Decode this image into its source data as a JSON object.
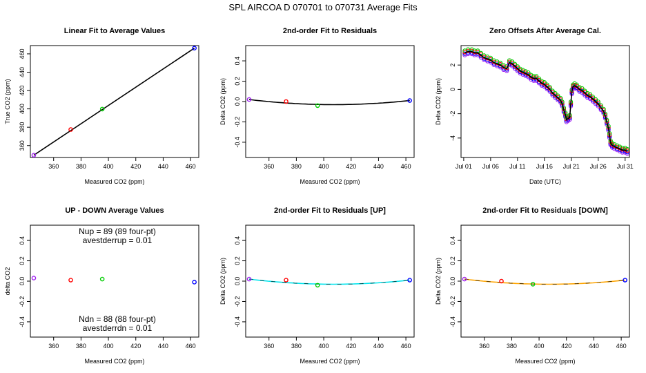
{
  "page_title": "SPL    AIRCOA D    070701 to 070731    Average Fits",
  "colors": {
    "c1": "#a020f0",
    "c2": "#ff0000",
    "c3": "#00cc00",
    "c4": "#0000ff",
    "line": "#000000",
    "up_fit": "#00e5ee",
    "down_fit": "#ffa500"
  },
  "chart_data": [
    {
      "type": "scatter",
      "title": "Linear Fit to Average Values",
      "xlabel": "Measured CO2 (ppm)",
      "ylabel": "True CO2 (ppm)",
      "xlim": [
        343,
        466
      ],
      "ylim": [
        347,
        469
      ],
      "xticks": [
        360,
        380,
        400,
        420,
        440,
        460
      ],
      "yticks": [
        360,
        380,
        400,
        420,
        440,
        460
      ],
      "x": [
        345.5,
        372.5,
        395.5,
        462.8
      ],
      "y": [
        349.5,
        377.5,
        399.8,
        466.2
      ],
      "colors": [
        "c1",
        "c2",
        "c3",
        "c4"
      ],
      "fit": {
        "kind": "linear",
        "x0": 345.5,
        "y0": 349.5,
        "x1": 462.8,
        "y1": 466.2
      }
    },
    {
      "type": "scatter",
      "title": "2nd-order Fit to Residuals",
      "xlabel": "Measured CO2 (ppm)",
      "ylabel": "Delta CO2 (ppm)",
      "xlim": [
        343,
        466
      ],
      "ylim": [
        -0.55,
        0.55
      ],
      "xticks": [
        360,
        380,
        400,
        420,
        440,
        460
      ],
      "yticks": [
        -0.4,
        -0.2,
        0.0,
        0.2,
        0.4
      ],
      "x": [
        345.5,
        372.5,
        395.5,
        462.8
      ],
      "y": [
        0.02,
        0.0,
        -0.04,
        0.01
      ],
      "colors": [
        "c1",
        "c2",
        "c3",
        "c4"
      ],
      "fit": {
        "kind": "quad",
        "x0": 345.5,
        "y0": 0.02,
        "x1": 462.8,
        "y1": 0.01,
        "xm": 412,
        "ym": -0.03,
        "color": "line"
      }
    },
    {
      "type": "line",
      "title": "Zero Offsets After Average Cal.",
      "xlabel": "Date (UTC)",
      "ylabel": "Delta CO2 (ppm)",
      "xlim": [
        0.5,
        31.8
      ],
      "ylim": [
        -5.6,
        3.6
      ],
      "xticks": [
        1,
        6,
        11,
        16,
        21,
        26,
        31
      ],
      "xticklabels": [
        "Jul 01",
        "Jul 06",
        "Jul 11",
        "Jul 16",
        "Jul 21",
        "Jul 26",
        "Jul 31"
      ],
      "yticks": [
        -4,
        -2,
        0,
        2
      ],
      "series": [
        {
          "name": "offset",
          "x": [
            1.2,
            1.8,
            2.5,
            3,
            3.6,
            4.2,
            4.8,
            5.4,
            6,
            6.6,
            7.2,
            7.8,
            8.4,
            9,
            9.5,
            10,
            10.5,
            11,
            11.5,
            12,
            12.5,
            13,
            13.5,
            14,
            14.5,
            15,
            15.5,
            16,
            16.5,
            17,
            17.5,
            18,
            18.5,
            19,
            19.3,
            19.6,
            19.9,
            20.1,
            20.4,
            20.7,
            20.9,
            21.1,
            21.3,
            21.6,
            22,
            22.5,
            23,
            23.5,
            24,
            24.5,
            25,
            25.5,
            26,
            26.5,
            27,
            27.3,
            27.6,
            27.9,
            28.1,
            28.3,
            28.6,
            29,
            29.5,
            30,
            30.5,
            31,
            31.4
          ],
          "y": [
            3.0,
            3.1,
            3.1,
            3.0,
            3.0,
            2.8,
            2.6,
            2.5,
            2.4,
            2.2,
            2.1,
            2.0,
            1.8,
            1.7,
            2.2,
            2.1,
            1.9,
            1.7,
            1.5,
            1.4,
            1.3,
            1.2,
            1.0,
            0.9,
            0.9,
            0.7,
            0.5,
            0.4,
            0.2,
            0.0,
            -0.3,
            -0.5,
            -0.7,
            -0.9,
            -1.2,
            -1.7,
            -2.1,
            -2.5,
            -2.4,
            -2.3,
            -1.2,
            -0.2,
            0.2,
            0.3,
            0.2,
            0.0,
            -0.1,
            -0.3,
            -0.5,
            -0.6,
            -0.8,
            -1.0,
            -1.2,
            -1.5,
            -1.8,
            -2.2,
            -2.7,
            -3.2,
            -3.8,
            -4.4,
            -4.6,
            -4.7,
            -4.8,
            -4.9,
            -5.0,
            -5.0,
            -5.1
          ]
        }
      ]
    },
    {
      "type": "scatter",
      "title": "UP - DOWN Average Values",
      "xlabel": "Measured CO2 (ppm)",
      "ylabel": "delta CO2",
      "xlim": [
        343,
        466
      ],
      "ylim": [
        -0.55,
        0.55
      ],
      "xticks": [
        360,
        380,
        400,
        420,
        440,
        460
      ],
      "yticks": [
        -0.4,
        -0.2,
        0.0,
        0.2,
        0.4
      ],
      "x": [
        345.5,
        372.5,
        395.5,
        462.8
      ],
      "y": [
        0.03,
        0.01,
        0.02,
        -0.01
      ],
      "colors": [
        "c1",
        "c2",
        "c3",
        "c4"
      ],
      "annotations": {
        "nup": "Nup = 89 (89 four-pt)",
        "avestderrup": "avestderrup =  0.01",
        "ndn": "Ndn = 88 (88 four-pt)",
        "avestderrdn": "avestderrdn =  0.01"
      }
    },
    {
      "type": "scatter",
      "title": "2nd-order Fit to Residuals [UP]",
      "xlabel": "Measured CO2 (ppm)",
      "ylabel": "Delta CO2 (ppm)",
      "xlim": [
        343,
        466
      ],
      "ylim": [
        -0.55,
        0.55
      ],
      "xticks": [
        360,
        380,
        400,
        420,
        440,
        460
      ],
      "yticks": [
        -0.4,
        -0.2,
        0.0,
        0.2,
        0.4
      ],
      "x": [
        345.5,
        372.5,
        395.5,
        462.8
      ],
      "y": [
        0.02,
        0.01,
        -0.04,
        0.01
      ],
      "colors": [
        "c1",
        "c2",
        "c3",
        "c4"
      ],
      "fit": {
        "kind": "quad",
        "x0": 345.5,
        "y0": 0.02,
        "x1": 462.8,
        "y1": 0.01,
        "xm": 412,
        "ym": -0.03,
        "color": "up_fit"
      }
    },
    {
      "type": "scatter",
      "title": "2nd-order Fit to Residuals [DOWN]",
      "xlabel": "Measured CO2 (ppm)",
      "ylabel": "Delta CO2 (ppm)",
      "xlim": [
        343,
        466
      ],
      "ylim": [
        -0.55,
        0.55
      ],
      "xticks": [
        360,
        380,
        400,
        420,
        440,
        460
      ],
      "yticks": [
        -0.4,
        -0.2,
        0.0,
        0.2,
        0.4
      ],
      "x": [
        345.5,
        372.5,
        395.5,
        462.8
      ],
      "y": [
        0.02,
        0.0,
        -0.03,
        0.01
      ],
      "colors": [
        "c1",
        "c2",
        "c3",
        "c4"
      ],
      "fit": {
        "kind": "quad",
        "x0": 345.5,
        "y0": 0.02,
        "x1": 462.8,
        "y1": 0.01,
        "xm": 412,
        "ym": -0.03,
        "color": "down_fit"
      }
    }
  ]
}
